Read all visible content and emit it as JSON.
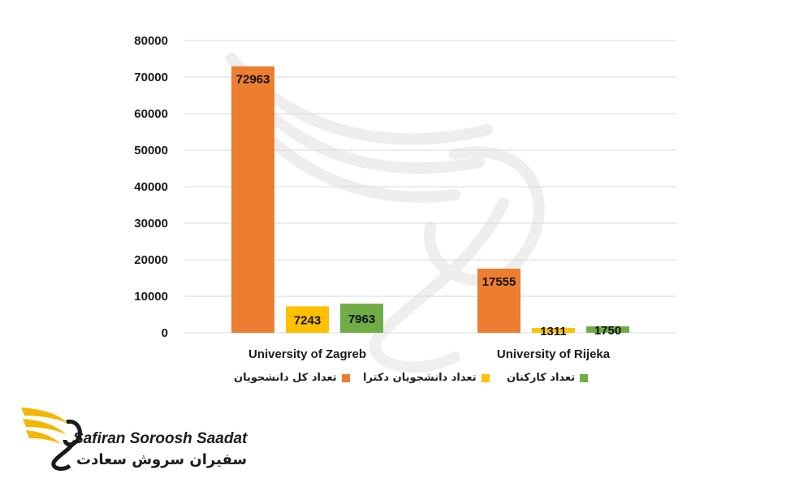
{
  "chart_data": {
    "type": "bar",
    "categories": [
      "University of Zagreb",
      "University of Rijeka"
    ],
    "series": [
      {
        "name": "تعداد کل دانشجویان",
        "values": [
          72963,
          17555
        ],
        "color": "#ED7D31"
      },
      {
        "name": "تعداد دانشجویان دکترا",
        "values": [
          7243,
          1311
        ],
        "color": "#FFC000"
      },
      {
        "name": "تعداد کارکنان",
        "values": [
          7963,
          1750
        ],
        "color": "#70AD47"
      }
    ],
    "ylim": [
      0,
      80000
    ],
    "yticks": [
      0,
      10000,
      20000,
      30000,
      40000,
      50000,
      60000,
      70000,
      80000
    ],
    "grid": true,
    "legend": "bottom",
    "data_labels": true
  },
  "watermark": {
    "brand_latin": "Safiran Soroosh Saadat",
    "brand_persian": "سفیران سروش سعادت",
    "logo_icon": "swan-wing-logo-icon"
  }
}
